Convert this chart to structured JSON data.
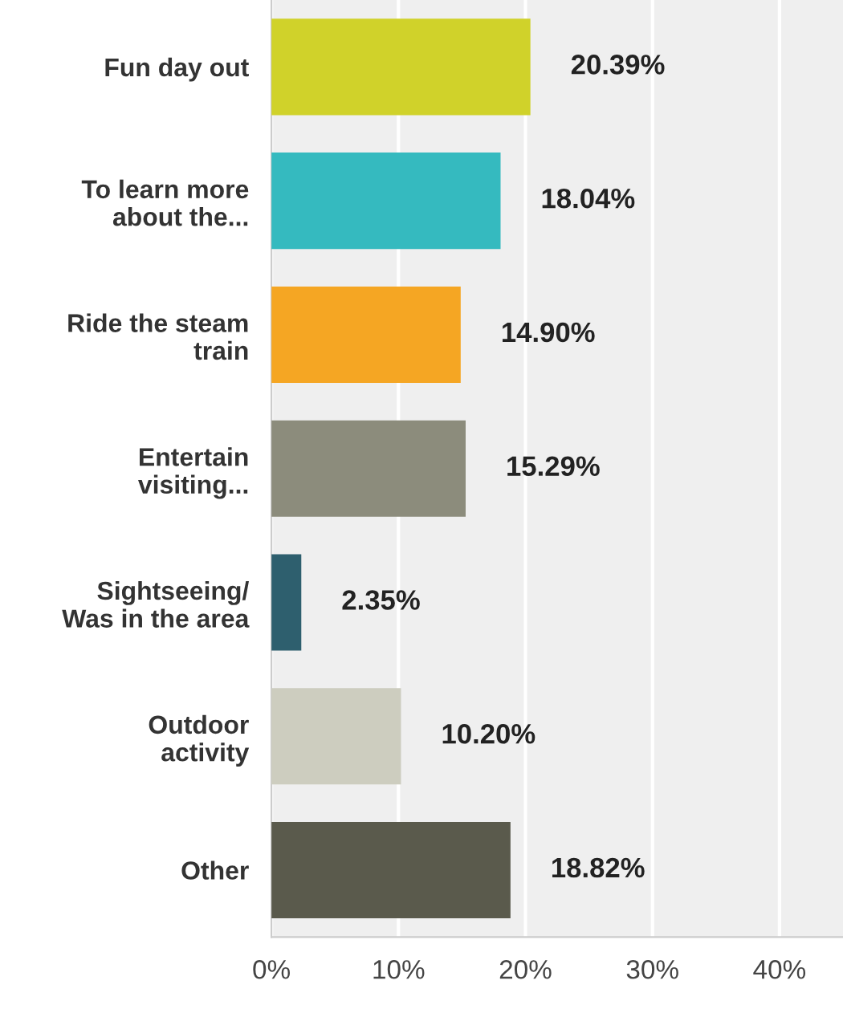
{
  "chart_data": {
    "type": "bar",
    "orientation": "horizontal",
    "categories": [
      "Fun day out",
      "To learn more\nabout the...",
      "Ride the steam\ntrain",
      "Entertain\nvisiting...",
      "Sightseeing/\nWas in the area",
      "Outdoor\nactivity",
      "Other"
    ],
    "values": [
      20.39,
      18.04,
      14.9,
      15.29,
      2.35,
      10.2,
      18.82
    ],
    "colors": [
      "#d0d22a",
      "#35babf",
      "#f5a623",
      "#8c8c7c",
      "#2e5f6e",
      "#cdcdbf",
      "#5a5a4c"
    ],
    "value_labels": [
      "20.39%",
      "18.04%",
      "14.90%",
      "15.29%",
      "2.35%",
      "10.20%",
      "18.82%"
    ],
    "xlim": [
      0,
      45
    ],
    "xticks": [
      {
        "value": 0,
        "label": "0%"
      },
      {
        "value": 10,
        "label": "10%"
      },
      {
        "value": 20,
        "label": "20%"
      },
      {
        "value": 30,
        "label": "30%"
      },
      {
        "value": 40,
        "label": "40%"
      }
    ],
    "grid": "x"
  }
}
